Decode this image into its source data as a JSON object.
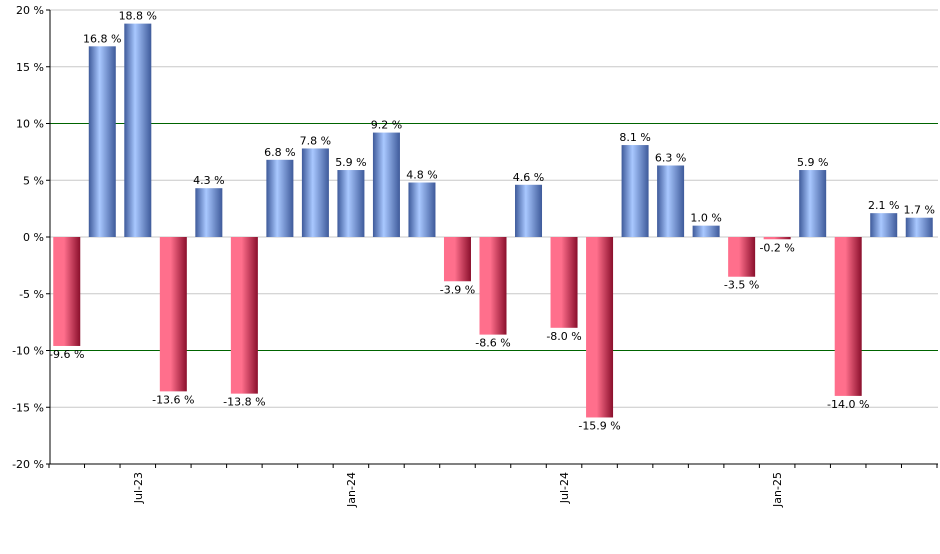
{
  "chart_data": {
    "type": "bar",
    "title": "",
    "xlabel": "",
    "ylabel": "",
    "ylim": [
      -20,
      20
    ],
    "yticks": [
      20,
      15,
      10,
      5,
      0,
      -5,
      -10,
      -15,
      -20
    ],
    "ytick_suffix": " %",
    "grid": true,
    "reference_lines": [
      10,
      -10
    ],
    "xtick_labels": [
      {
        "label": "Jul-23",
        "index": 2
      },
      {
        "label": "Jan-24",
        "index": 8
      },
      {
        "label": "Jul-24",
        "index": 14
      },
      {
        "label": "Jan-25",
        "index": 20
      }
    ],
    "value_suffix": " %",
    "values": [
      -9.6,
      16.8,
      18.8,
      -13.6,
      4.3,
      -13.8,
      6.8,
      7.8,
      5.9,
      9.2,
      4.8,
      -3.9,
      -8.6,
      4.6,
      -8.0,
      -15.9,
      8.1,
      6.3,
      1.0,
      -3.5,
      -0.2,
      5.9,
      -14.0,
      2.1,
      1.7
    ],
    "value_labels": [
      "-9.6",
      "16.8",
      "18.8",
      "-13.6",
      "4.3",
      "-13.8",
      "6.8",
      "7.8",
      "5.9",
      "9.2",
      "4.8",
      "-3.9",
      "-8.6",
      "4.6",
      "-8.0",
      "-15.9",
      "8.1",
      "6.3",
      "1.0",
      "-3.5",
      "-0.2",
      "5.9",
      "-14.0",
      "2.1",
      "1.7"
    ],
    "colors": {
      "positive_light": "#a9c8ff",
      "positive_dark": "#3e5a9a",
      "negative_light": "#ff6f8c",
      "negative_dark": "#8a0f2c",
      "gridline": "#c8c8c8",
      "reference_line": "#006400",
      "axis": "#000000"
    }
  }
}
